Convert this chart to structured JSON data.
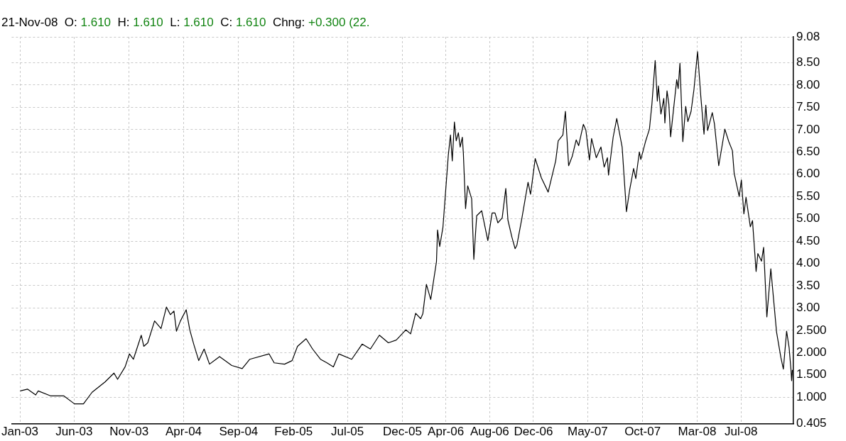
{
  "chart_data": {
    "type": "line",
    "subtitle": "21-Nov-08  O: 1.610  H: 1.610  L: 1.610  C: 1.610  Chng: +0.300 (22.",
    "x": [
      "2003-01-02",
      "2003-01-22",
      "2003-02-14",
      "2003-02-21",
      "2003-03-27",
      "2003-05-03",
      "2003-06-02",
      "2003-06-27",
      "2003-07-21",
      "2003-08-26",
      "2003-09-20",
      "2003-09-30",
      "2003-10-21",
      "2003-11-02",
      "2003-11-13",
      "2003-12-05",
      "2003-12-12",
      "2003-12-23",
      "2004-01-11",
      "2004-01-29",
      "2004-02-13",
      "2004-02-24",
      "2004-03-05",
      "2004-03-12",
      "2004-03-23",
      "2004-04-08",
      "2004-04-18",
      "2004-04-29",
      "2004-05-13",
      "2004-05-28",
      "2004-06-12",
      "2004-07-10",
      "2004-08-13",
      "2004-09-11",
      "2004-10-02",
      "2004-11-25",
      "2004-12-09",
      "2005-01-07",
      "2005-01-28",
      "2005-02-12",
      "2005-03-08",
      "2005-03-26",
      "2005-04-17",
      "2005-05-05",
      "2005-05-23",
      "2005-06-07",
      "2005-07-13",
      "2005-08-11",
      "2005-09-03",
      "2005-09-28",
      "2005-10-23",
      "2005-11-14",
      "2005-12-11",
      "2005-12-24",
      "2006-01-07",
      "2006-01-21",
      "2006-01-27",
      "2006-02-06",
      "2006-02-18",
      "2006-03-06",
      "2006-03-09",
      "2006-03-15",
      "2006-03-24",
      "2006-04-08",
      "2006-04-14",
      "2006-04-19",
      "2006-04-25",
      "2006-04-30",
      "2006-05-06",
      "2006-05-11",
      "2006-05-17",
      "2006-05-20",
      "2006-05-26",
      "2006-06-01",
      "2006-06-12",
      "2006-06-18",
      "2006-06-26",
      "2006-07-10",
      "2006-07-27",
      "2006-08-08",
      "2006-08-16",
      "2006-08-24",
      "2006-09-05",
      "2006-09-15",
      "2006-09-21",
      "2006-10-02",
      "2006-10-11",
      "2006-10-16",
      "2006-10-30",
      "2006-11-16",
      "2006-11-23",
      "2006-12-06",
      "2006-12-23",
      "2007-01-11",
      "2007-02-01",
      "2007-02-08",
      "2007-02-21",
      "2007-02-28",
      "2007-03-09",
      "2007-03-19",
      "2007-03-30",
      "2007-04-06",
      "2007-04-19",
      "2007-04-26",
      "2007-05-06",
      "2007-05-12",
      "2007-05-25",
      "2007-06-07",
      "2007-06-16",
      "2007-06-25",
      "2007-06-28",
      "2007-07-11",
      "2007-07-21",
      "2007-08-05",
      "2007-08-17",
      "2007-08-26",
      "2007-09-06",
      "2007-09-12",
      "2007-09-22",
      "2007-09-26",
      "2007-10-09",
      "2007-10-20",
      "2007-10-27",
      "2007-11-05",
      "2007-11-11",
      "2007-11-14",
      "2007-11-21",
      "2007-11-29",
      "2007-12-02",
      "2007-12-08",
      "2007-12-13",
      "2007-12-18",
      "2007-12-27",
      "2008-01-04",
      "2008-01-08",
      "2008-01-13",
      "2008-01-21",
      "2008-01-29",
      "2008-02-04",
      "2008-02-13",
      "2008-02-21",
      "2008-03-02",
      "2008-03-11",
      "2008-03-20",
      "2008-03-25",
      "2008-03-30",
      "2008-04-12",
      "2008-04-18",
      "2008-04-30",
      "2008-05-17",
      "2008-05-28",
      "2008-06-07",
      "2008-06-12",
      "2008-06-26",
      "2008-07-02",
      "2008-07-09",
      "2008-07-15",
      "2008-07-27",
      "2008-08-02",
      "2008-08-12",
      "2008-08-17",
      "2008-08-27",
      "2008-09-02",
      "2008-09-11",
      "2008-09-22",
      "2008-10-08",
      "2008-10-20",
      "2008-10-27",
      "2008-11-05",
      "2008-11-12",
      "2008-11-17",
      "2008-11-19",
      "2008-11-21"
    ],
    "series": [
      {
        "color": "#000000",
        "values": [
          1.14,
          1.18,
          1.05,
          1.14,
          1.03,
          1.03,
          0.85,
          0.85,
          1.11,
          1.34,
          1.54,
          1.4,
          1.68,
          1.97,
          1.85,
          2.39,
          2.14,
          2.22,
          2.71,
          2.54,
          3.02,
          2.85,
          2.93,
          2.48,
          2.71,
          2.96,
          2.51,
          2.19,
          1.82,
          2.08,
          1.74,
          1.91,
          1.71,
          1.64,
          1.85,
          1.97,
          1.77,
          1.74,
          1.82,
          2.14,
          2.31,
          2.08,
          1.85,
          1.77,
          1.68,
          1.97,
          1.85,
          2.19,
          2.08,
          2.39,
          2.22,
          2.28,
          2.51,
          2.42,
          2.88,
          2.76,
          2.87,
          3.53,
          3.19,
          4.04,
          4.75,
          4.38,
          4.81,
          6.43,
          6.88,
          6.3,
          7.17,
          6.75,
          6.93,
          6.61,
          6.83,
          6.45,
          5.23,
          5.74,
          5.45,
          4.09,
          5.07,
          5.18,
          4.51,
          5.13,
          5.13,
          4.91,
          5.02,
          5.68,
          4.97,
          4.59,
          4.33,
          4.41,
          5.02,
          5.82,
          5.55,
          6.35,
          5.92,
          5.6,
          6.3,
          6.75,
          6.88,
          7.41,
          6.19,
          6.4,
          6.77,
          6.64,
          7.12,
          6.99,
          6.32,
          6.8,
          6.37,
          6.61,
          6.16,
          6.37,
          5.98,
          6.83,
          7.25,
          6.61,
          5.16,
          5.65,
          6.13,
          5.9,
          6.5,
          6.33,
          6.73,
          7.01,
          7.58,
          8.55,
          7.64,
          7.98,
          7.35,
          7.7,
          7.15,
          7.87,
          7.58,
          6.84,
          7.52,
          8.12,
          7.92,
          8.49,
          6.73,
          7.52,
          7.18,
          7.41,
          7.9,
          8.75,
          7.75,
          6.9,
          7.55,
          6.98,
          7.38,
          7.13,
          6.19,
          7.01,
          6.73,
          6.53,
          6.02,
          5.5,
          5.87,
          5.11,
          5.48,
          4.82,
          4.96,
          3.82,
          4.22,
          4.05,
          4.36,
          2.8,
          3.88,
          2.46,
          1.89,
          1.63,
          2.48,
          2.11,
          1.63,
          1.37,
          1.61
        ]
      }
    ],
    "xlim": [
      "2002-12-09",
      "2008-11-24"
    ],
    "xticks": [
      {
        "value": "2003-01-01",
        "label": "Jan-03"
      },
      {
        "value": "2003-06-01",
        "label": "Jun-03"
      },
      {
        "value": "2003-11-01",
        "label": "Nov-03"
      },
      {
        "value": "2004-04-01",
        "label": "Apr-04"
      },
      {
        "value": "2004-09-01",
        "label": "Sep-04"
      },
      {
        "value": "2005-02-01",
        "label": "Feb-05"
      },
      {
        "value": "2005-07-01",
        "label": "Jul-05"
      },
      {
        "value": "2005-12-01",
        "label": "Dec-05"
      },
      {
        "value": "2006-04-01",
        "label": "Apr-06"
      },
      {
        "value": "2006-08-01",
        "label": "Aug-06"
      },
      {
        "value": "2006-12-01",
        "label": "Dec-06"
      },
      {
        "value": "2007-05-01",
        "label": "May-07"
      },
      {
        "value": "2007-10-01",
        "label": "Oct-07"
      },
      {
        "value": "2008-03-01",
        "label": "Mar-08"
      },
      {
        "value": "2008-07-01",
        "label": "Jul-08"
      }
    ],
    "ylim": [
      0.405,
      9.08
    ],
    "yticks": [
      {
        "value": 0.405,
        "label": "0.405"
      },
      {
        "value": 1,
        "label": "1.000"
      },
      {
        "value": 1.5,
        "label": "1.500"
      },
      {
        "value": 2,
        "label": "2.000"
      },
      {
        "value": 2.5,
        "label": "2.500"
      },
      {
        "value": 3,
        "label": "3.00"
      },
      {
        "value": 3.5,
        "label": "3.50"
      },
      {
        "value": 4,
        "label": "4.00"
      },
      {
        "value": 4.5,
        "label": "4.50"
      },
      {
        "value": 5,
        "label": "5.00"
      },
      {
        "value": 5.5,
        "label": "5.50"
      },
      {
        "value": 6,
        "label": "6.00"
      },
      {
        "value": 6.5,
        "label": "6.50"
      },
      {
        "value": 7,
        "label": "7.00"
      },
      {
        "value": 7.5,
        "label": "7.50"
      },
      {
        "value": 8,
        "label": "8.00"
      },
      {
        "value": 8.5,
        "label": "8.50"
      },
      {
        "value": 9.08,
        "label": "9.08"
      }
    ],
    "grid": true,
    "legend": false,
    "marker": "none",
    "line_style": "solid"
  }
}
